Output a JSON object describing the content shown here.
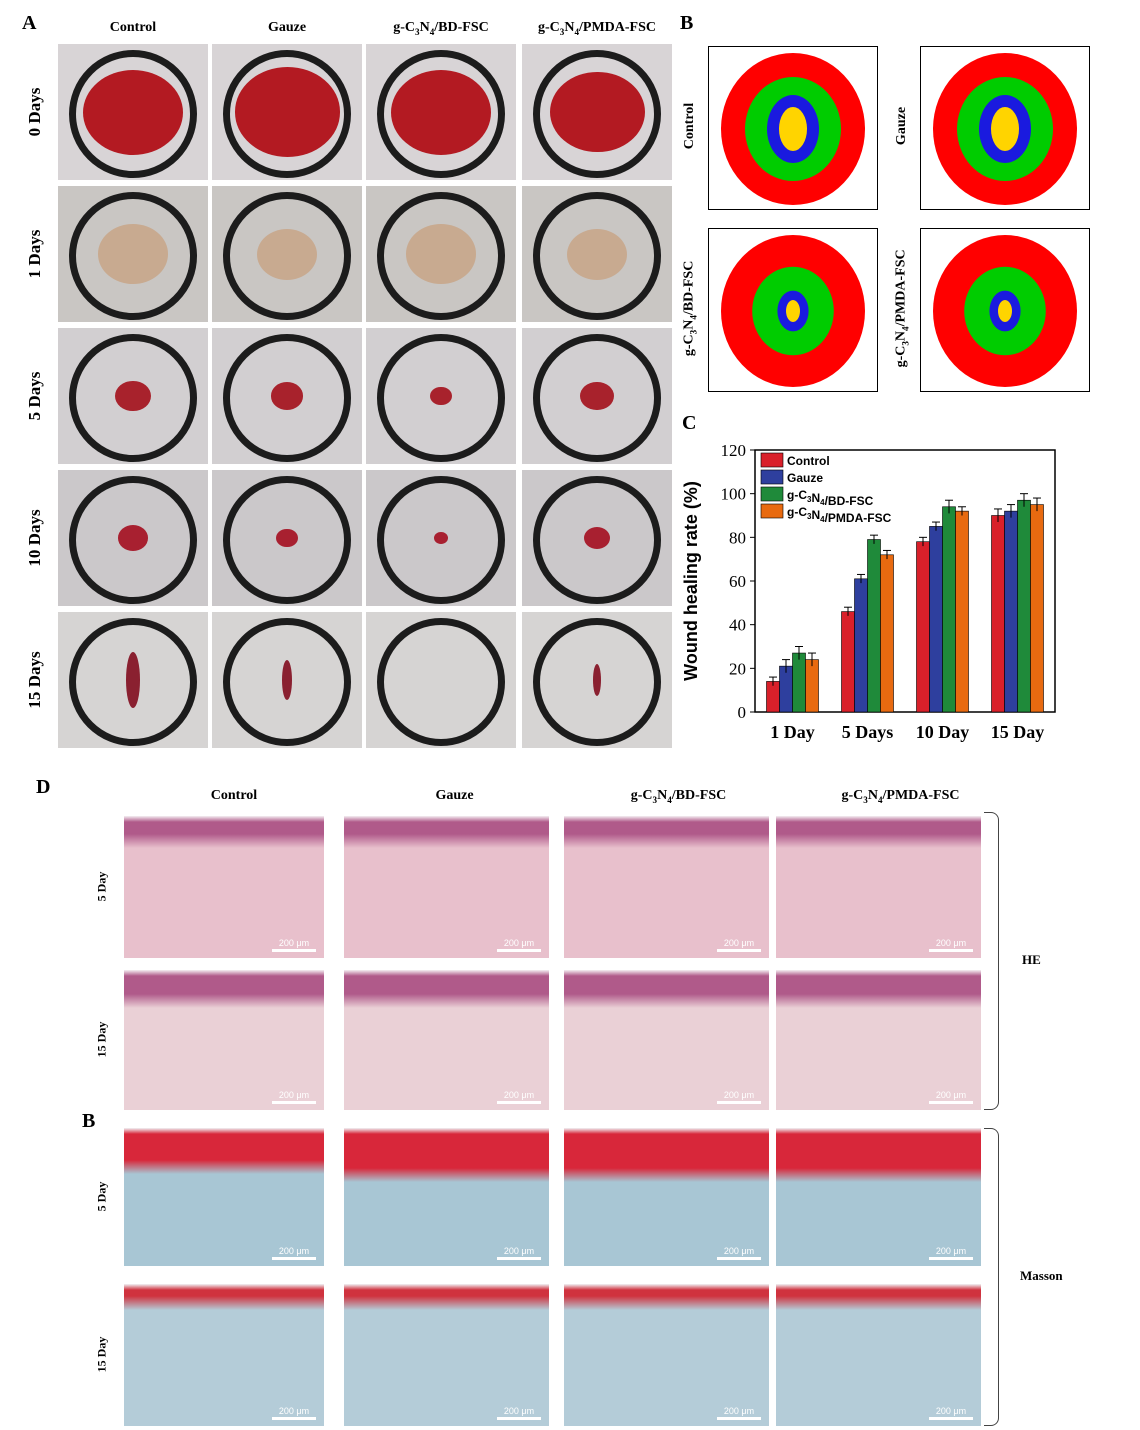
{
  "panel_a": {
    "label": "A",
    "columns": [
      "Control",
      "Gauze",
      "g-C3N4/BD-FSC",
      "g-C3N4/PMDA-FSC"
    ],
    "rows": [
      "0 Days",
      "1 Days",
      "5 Days",
      "10 Days",
      "15 Days"
    ]
  },
  "panel_b": {
    "label": "B",
    "maps": [
      "Control",
      "Gauze",
      "g-C3N4/BD-FSC",
      "g-C3N4/PMDA-FSC"
    ],
    "colors": {
      "day0": "#ff0000",
      "day1": "#00cc00",
      "day5": "#1a1adf",
      "day10": "#ffd400",
      "day15": "#f5a623"
    }
  },
  "panel_c": {
    "label": "C"
  },
  "chart_data": {
    "type": "bar",
    "categories": [
      "1 Day",
      "5 Days",
      "10 Day",
      "15 Day"
    ],
    "series": [
      {
        "name": "Control",
        "values": [
          14,
          46,
          78,
          90
        ],
        "errors": [
          2,
          2,
          2,
          3
        ],
        "color": "#d9202a"
      },
      {
        "name": "Gauze",
        "values": [
          21,
          61,
          85,
          92
        ],
        "errors": [
          3,
          2,
          2,
          3
        ],
        "color": "#2e3f9e"
      },
      {
        "name": "g-C3N4/BD-FSC",
        "values": [
          27,
          79,
          94,
          97
        ],
        "errors": [
          3,
          2,
          3,
          3
        ],
        "color": "#1f8a3a"
      },
      {
        "name": "g-C3N4/PMDA-FSC",
        "values": [
          24,
          72,
          92,
          95
        ],
        "errors": [
          3,
          2,
          2,
          3
        ],
        "color": "#e86a10"
      }
    ],
    "ylabel": "Wound healing rate (%)",
    "xlabel": "",
    "ylim": [
      0,
      120
    ],
    "yticks": [
      "0",
      "20",
      "40",
      "60",
      "80",
      "100",
      "120"
    ],
    "legend": "top-left"
  },
  "panel_d": {
    "label": "D",
    "label2": "B",
    "columns": [
      "Control",
      "Gauze",
      "g-C3N4/BD-FSC",
      "g-C3N4/PMDA-FSC"
    ],
    "rows": [
      "5 Day",
      "15 Day",
      "5 Day",
      "15 Day"
    ],
    "scalebar": "200 μm",
    "stain_he": "HE",
    "stain_masson": "Masson"
  }
}
